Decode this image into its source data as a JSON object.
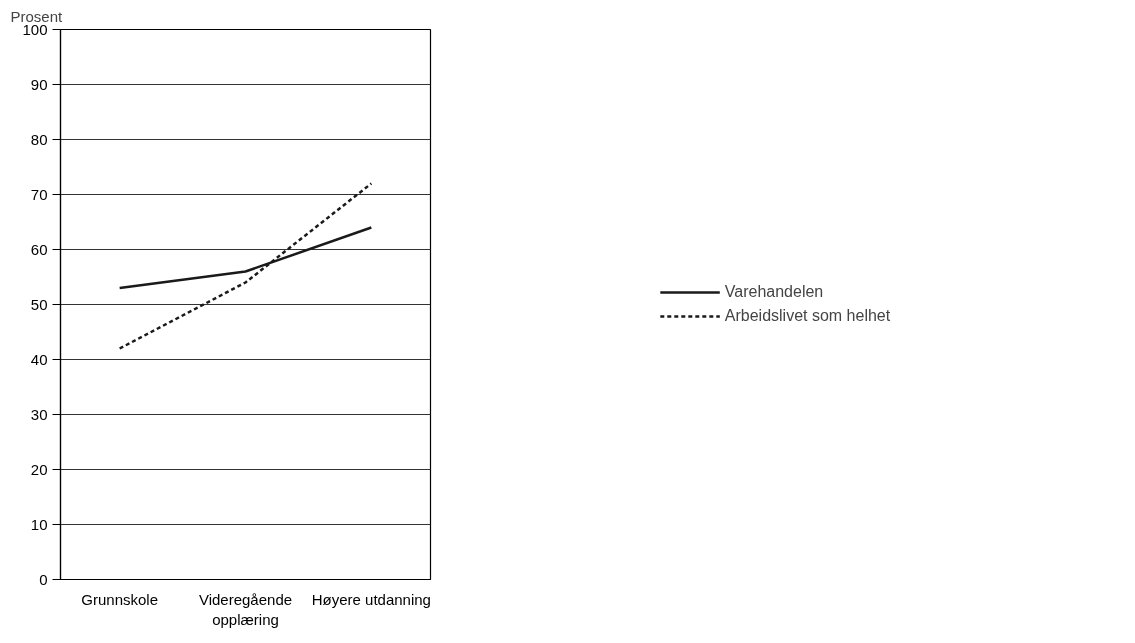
{
  "chart_data": {
    "type": "line",
    "ylabel": "Prosent",
    "categories": [
      "Grunnskole",
      "Videregående\nopplæring",
      "Høyere utdanning"
    ],
    "series": [
      {
        "name": "Varehandelen",
        "color": "#1a1a1a",
        "values": [
          53,
          56,
          64
        ],
        "line_style": "solid"
      },
      {
        "name": "Arbeidslivet som helhet",
        "color": "#1a1a1a",
        "values": [
          42,
          54,
          72
        ],
        "line_style": "dotted"
      }
    ],
    "ylim": [
      0,
      100
    ],
    "yticks": [
      0,
      10,
      20,
      30,
      40,
      50,
      60,
      70,
      80,
      90,
      100
    ],
    "grid": "y",
    "legend": "right",
    "marker": "none"
  }
}
